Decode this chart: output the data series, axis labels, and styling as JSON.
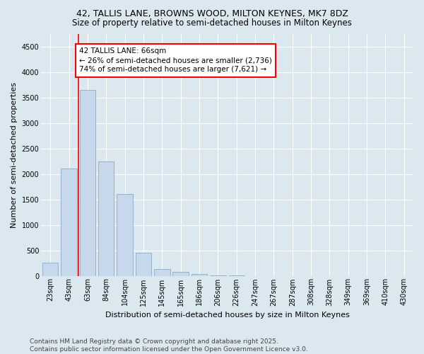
{
  "title1": "42, TALLIS LANE, BROWNS WOOD, MILTON KEYNES, MK7 8DZ",
  "title2": "Size of property relative to semi-detached houses in Milton Keynes",
  "xlabel": "Distribution of semi-detached houses by size in Milton Keynes",
  "ylabel": "Number of semi-detached properties",
  "categories": [
    "23sqm",
    "43sqm",
    "63sqm",
    "84sqm",
    "104sqm",
    "125sqm",
    "145sqm",
    "165sqm",
    "186sqm",
    "206sqm",
    "226sqm",
    "247sqm",
    "267sqm",
    "287sqm",
    "308sqm",
    "328sqm",
    "349sqm",
    "369sqm",
    "410sqm",
    "430sqm"
  ],
  "values": [
    255,
    2100,
    3650,
    2250,
    1600,
    450,
    130,
    70,
    40,
    5,
    2,
    0,
    0,
    0,
    0,
    0,
    0,
    0,
    0,
    0
  ],
  "bar_color": "#c8d8ec",
  "bar_edge_color": "#8aaac8",
  "highlight_line_color": "red",
  "annotation_title": "42 TALLIS LANE: 66sqm",
  "annotation_line1": "← 26% of semi-detached houses are smaller (2,736)",
  "annotation_line2": "74% of semi-detached houses are larger (7,621) →",
  "annotation_box_color": "white",
  "annotation_box_edge_color": "red",
  "ylim": [
    0,
    4750
  ],
  "yticks": [
    0,
    500,
    1000,
    1500,
    2000,
    2500,
    3000,
    3500,
    4000,
    4500
  ],
  "background_color": "#dce8f0",
  "plot_bg_color": "#dce8f0",
  "footer": "Contains HM Land Registry data © Crown copyright and database right 2025.\nContains public sector information licensed under the Open Government Licence v3.0.",
  "title1_fontsize": 9,
  "title2_fontsize": 8.5,
  "xlabel_fontsize": 8,
  "ylabel_fontsize": 8,
  "tick_fontsize": 7,
  "annotation_fontsize": 7.5,
  "footer_fontsize": 6.5
}
